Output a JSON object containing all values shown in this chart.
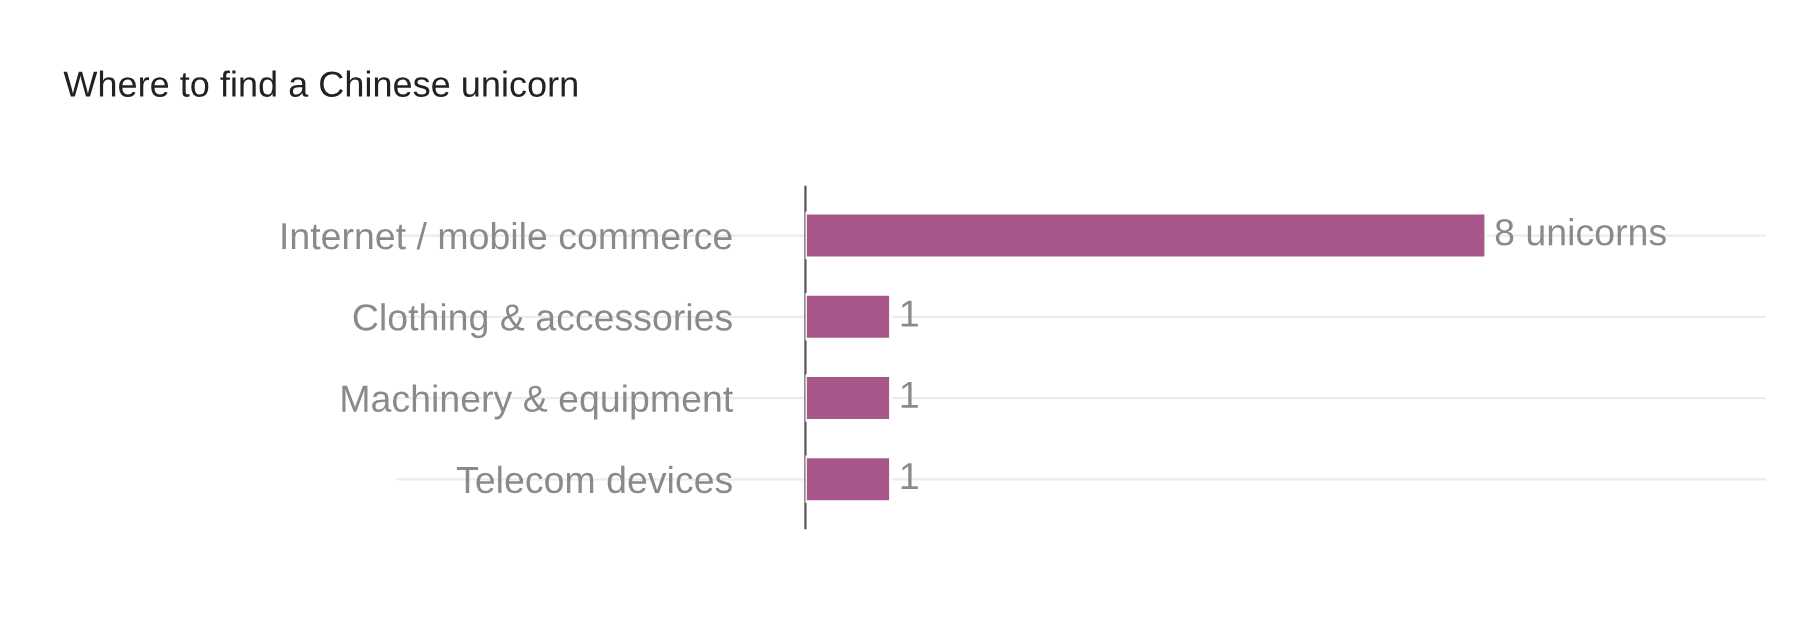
{
  "chart_data": {
    "type": "bar",
    "orientation": "horizontal",
    "title": "Where to find a Chinese unicorn",
    "categories": [
      "Internet / mobile commerce",
      "Clothing & accessories",
      "Machinery & equipment",
      "Telecom devices"
    ],
    "values": [
      8,
      1,
      1,
      1
    ],
    "value_labels": [
      "8 unicorns",
      "1",
      "1",
      "1"
    ],
    "color": "#a8578a",
    "grid": "y"
  }
}
